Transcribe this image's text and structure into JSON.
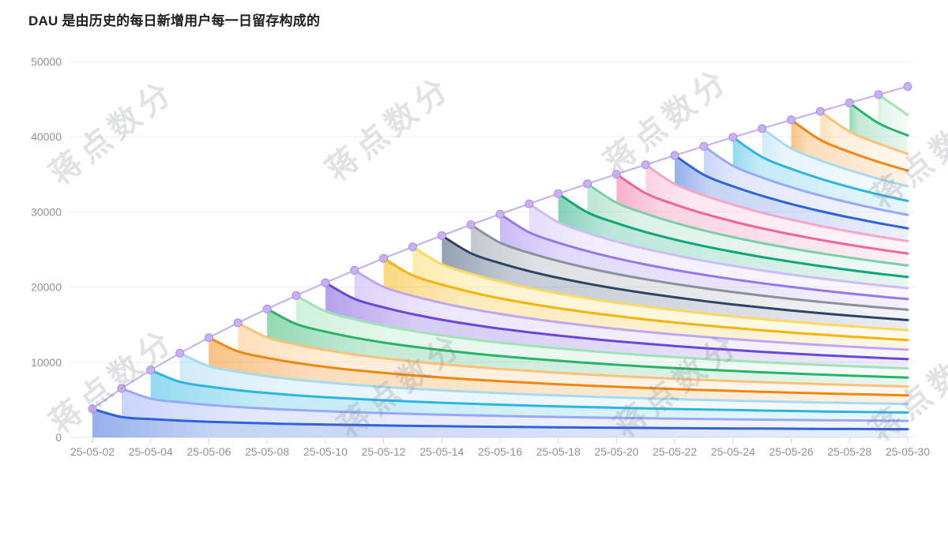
{
  "title": "DAU 是由历史的每日新增用户每一日留存构成的",
  "watermark": {
    "text": "蒋点数分"
  },
  "colors": {
    "background": "#ffffff",
    "title_text": "#1c1e22",
    "axis_text": "#8b91a0",
    "grid_line": "#eeeef2",
    "baseline": "#e4e6ea",
    "tick_mark": "#d5d7dd",
    "envelope_line": "#b99fe8",
    "envelope_dot_fill": "#c8b0f2",
    "envelope_dot_stroke": "#ab8ee4"
  },
  "chart_data": {
    "type": "area",
    "subtype": "stacked-cohort-retention",
    "title": "DAU 是由历史的每日新增用户每一日留存构成的",
    "xlabel": "",
    "ylabel": "",
    "grid": true,
    "legend": "none",
    "ylim": [
      0,
      50000
    ],
    "y_ticks": [
      0,
      10000,
      20000,
      30000,
      40000,
      50000
    ],
    "x_axis_labels": [
      "25-05-02",
      "25-05-04",
      "25-05-06",
      "25-05-08",
      "25-05-10",
      "25-05-12",
      "25-05-14",
      "25-05-16",
      "25-05-18",
      "25-05-20",
      "25-05-22",
      "25-05-24",
      "25-05-26",
      "25-05-28",
      "25-05-30"
    ],
    "dates": [
      "25-05-02",
      "25-05-03",
      "25-05-04",
      "25-05-05",
      "25-05-06",
      "25-05-07",
      "25-05-08",
      "25-05-09",
      "25-05-10",
      "25-05-11",
      "25-05-12",
      "25-05-13",
      "25-05-14",
      "25-05-15",
      "25-05-16",
      "25-05-17",
      "25-05-18",
      "25-05-19",
      "25-05-20",
      "25-05-21",
      "25-05-22",
      "25-05-23",
      "25-05-24",
      "25-05-25",
      "25-05-26",
      "25-05-27",
      "25-05-28",
      "25-05-29",
      "25-05-30"
    ],
    "new_users_per_day": 4000,
    "retention_by_day": [
      0.95,
      0.68,
      0.61,
      0.56,
      0.52,
      0.49,
      0.465,
      0.445,
      0.427,
      0.411,
      0.397,
      0.384,
      0.373,
      0.362,
      0.353,
      0.344,
      0.336,
      0.328,
      0.321,
      0.315,
      0.309,
      0.303,
      0.298,
      0.293,
      0.288,
      0.284,
      0.28,
      0.276,
      0.272
    ],
    "dau_total": [
      3800,
      6520,
      8960,
      11200,
      13280,
      15240,
      17100,
      18880,
      20588,
      22232,
      23820,
      25356,
      26848,
      28296,
      29708,
      31084,
      32428,
      33740,
      35024,
      36284,
      37520,
      38732,
      39924,
      41096,
      42248,
      43384,
      44504,
      45608,
      46696
    ],
    "cohort_palette": [
      {
        "name": "blue",
        "line": "#2e63d9"
      },
      {
        "name": "periwinkle",
        "line": "#97a9f7"
      },
      {
        "name": "cyan",
        "line": "#2cb5e2"
      },
      {
        "name": "pale-blue",
        "line": "#a6d9f2"
      },
      {
        "name": "orange",
        "line": "#f1860d"
      },
      {
        "name": "pale-orange",
        "line": "#ffc078"
      },
      {
        "name": "green",
        "line": "#29b269"
      },
      {
        "name": "pale-green",
        "line": "#9fe3b7"
      },
      {
        "name": "violet",
        "line": "#6a46d9"
      },
      {
        "name": "pale-violet",
        "line": "#bda6f5"
      },
      {
        "name": "gold",
        "line": "#f7b305"
      },
      {
        "name": "pale-gold",
        "line": "#fbd95e"
      },
      {
        "name": "navy",
        "line": "#2c4566"
      },
      {
        "name": "gray",
        "line": "#8a919b"
      },
      {
        "name": "purple",
        "line": "#9677f0"
      },
      {
        "name": "lavender",
        "line": "#cdbcf7"
      },
      {
        "name": "teal",
        "line": "#0da678"
      },
      {
        "name": "pale-teal",
        "line": "#7bcfa8"
      },
      {
        "name": "pink",
        "line": "#f0649a"
      },
      {
        "name": "pale-pink",
        "line": "#f7a6c8"
      }
    ]
  }
}
